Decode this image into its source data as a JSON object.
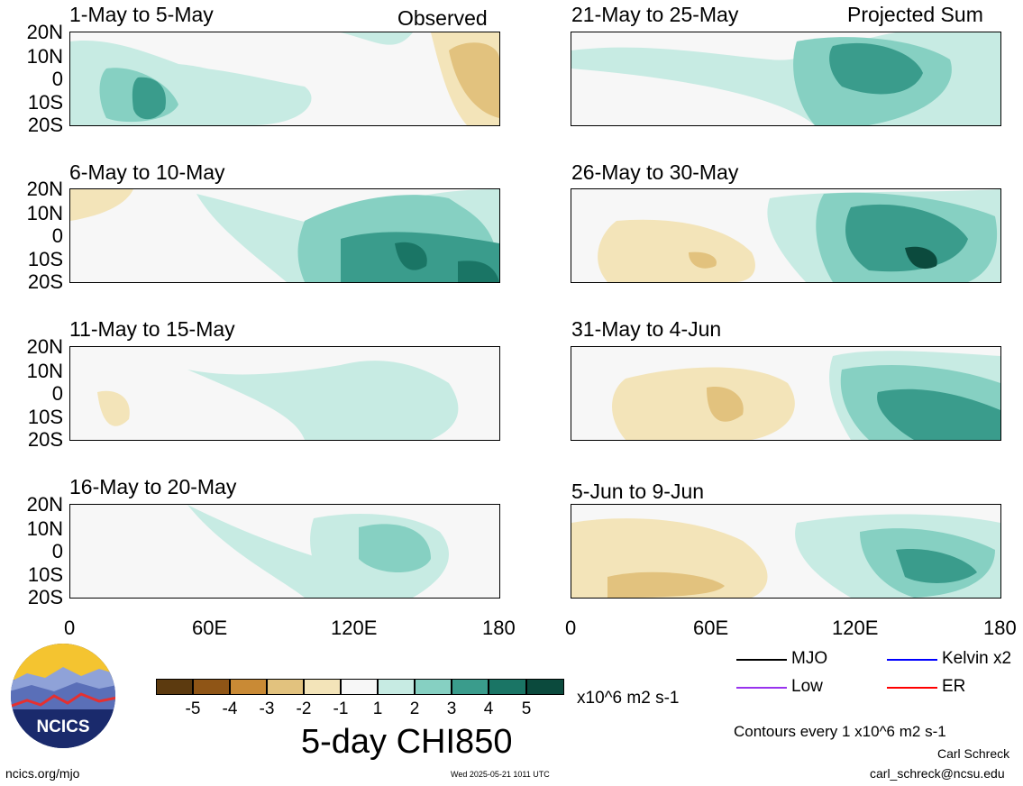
{
  "header": {
    "left_label": "Observed",
    "right_label": "Projected Sum"
  },
  "panels": [
    {
      "title": "1-May to 5-May"
    },
    {
      "title": "6-May to 10-May"
    },
    {
      "title": "11-May to 15-May"
    },
    {
      "title": "16-May to 20-May"
    },
    {
      "title": "21-May to 25-May"
    },
    {
      "title": "26-May to 30-May"
    },
    {
      "title": "31-May to 4-Jun"
    },
    {
      "title": "5-Jun to 9-Jun"
    }
  ],
  "lat_labels": [
    "20N",
    "10N",
    "0",
    "10S",
    "20S"
  ],
  "lon_labels": [
    "0",
    "60E",
    "120E",
    "180"
  ],
  "colorbar": {
    "labels": [
      "-5",
      "-4",
      "-3",
      "-2",
      "-1",
      "1",
      "2",
      "3",
      "4",
      "5"
    ],
    "colors": [
      "#5c3a0f",
      "#8f5516",
      "#c98a35",
      "#e2c27e",
      "#f3e4b9",
      "#f7f7f7",
      "#c7ebe3",
      "#86d0c2",
      "#3a9c8c",
      "#1a7565",
      "#0b4a3d"
    ],
    "units": "x10^6 m2 s-1"
  },
  "main_title": "5-day CHI850",
  "legend": [
    {
      "label": "MJO",
      "color": "#000000"
    },
    {
      "label": "Kelvin x2",
      "color": "#0000ff"
    },
    {
      "label": "Low",
      "color": "#9933ee"
    },
    {
      "label": "ER",
      "color": "#ff0000"
    }
  ],
  "contours_note": "Contours every 1 x10^6 m2 s-1",
  "author": "Carl Schreck",
  "email": "carl_schreck@ncsu.edu",
  "website": "ncics.org/mjo",
  "timestamp": "Wed 2025-05-21 1011 UTC",
  "logo_text": "NCICS"
}
